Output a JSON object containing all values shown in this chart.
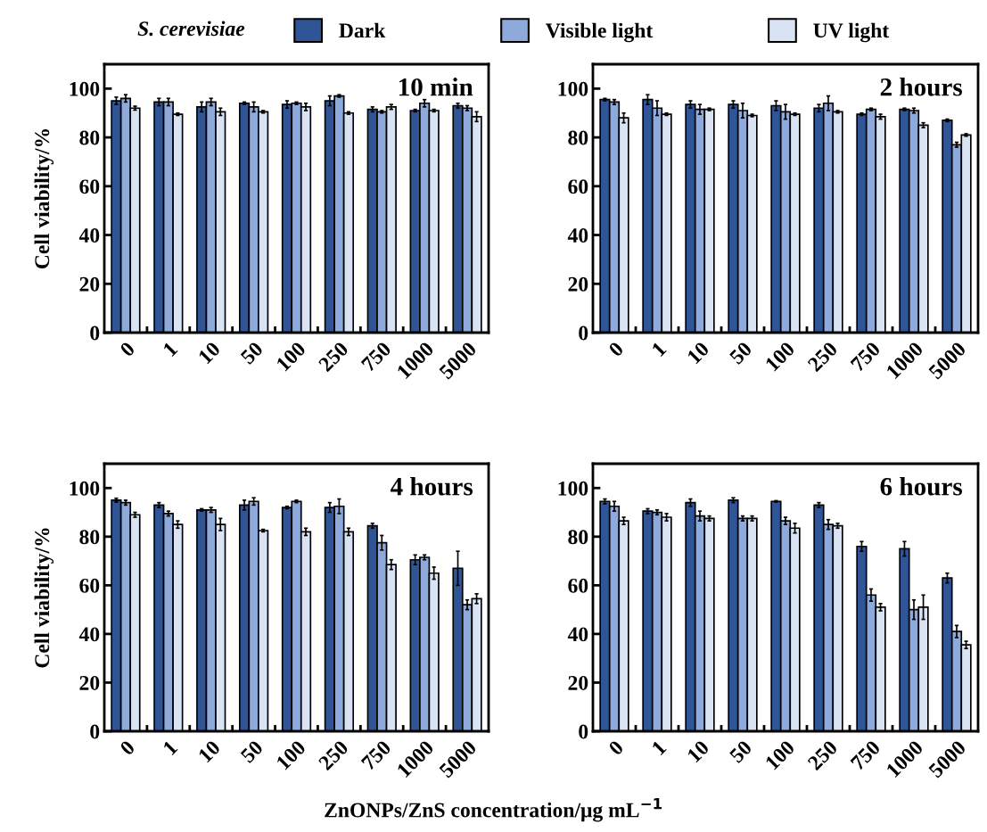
{
  "chart_data": [
    {
      "type": "bar",
      "title": "10 min",
      "ylabel": "Cell viability/%",
      "legend_title": "S. cerevisiae",
      "legend": "top",
      "categories": [
        "0",
        "1",
        "10",
        "50",
        "100",
        "250",
        "750",
        "1000",
        "5000"
      ],
      "ylim": [
        0,
        110
      ],
      "yticks": [
        0,
        20,
        40,
        60,
        80,
        100
      ],
      "series": [
        {
          "name": "Dark",
          "color": "#2f5597",
          "values": [
            95,
            94.5,
            92.5,
            94,
            93.5,
            95,
            91.5,
            91,
            93
          ],
          "errors": [
            1.5,
            1.5,
            2,
            0.5,
            1.5,
            2,
            1,
            0.5,
            1
          ]
        },
        {
          "name": "Visible light",
          "color": "#8eaadb",
          "values": [
            96,
            94.5,
            94.5,
            92.5,
            94,
            97,
            90.5,
            94,
            92
          ],
          "errors": [
            1.5,
            1.5,
            1.5,
            2,
            0.5,
            0.5,
            0.5,
            1.5,
            1
          ]
        },
        {
          "name": "UV light",
          "color": "#dae3f3",
          "values": [
            92,
            89.5,
            90.5,
            90.5,
            92.5,
            90,
            92.5,
            91,
            88.5
          ],
          "errors": [
            0.8,
            0.5,
            1.5,
            0.5,
            1.5,
            0.5,
            1,
            0.5,
            2
          ]
        }
      ]
    },
    {
      "type": "bar",
      "title": "2 hours",
      "categories": [
        "0",
        "1",
        "10",
        "50",
        "100",
        "250",
        "750",
        "1000",
        "5000"
      ],
      "ylim": [
        0,
        110
      ],
      "yticks": [
        0,
        20,
        40,
        60,
        80,
        100
      ],
      "series": [
        {
          "color": "#2f5597",
          "values": [
            95.5,
            95.5,
            93.5,
            93.5,
            93,
            92,
            89.5,
            91.5,
            87
          ],
          "errors": [
            0.5,
            2,
            1.5,
            1.5,
            2,
            1.5,
            0.5,
            0.5,
            0.5
          ]
        },
        {
          "color": "#8eaadb",
          "values": [
            94.5,
            92,
            91.5,
            91,
            90.5,
            94,
            91.5,
            91,
            77
          ],
          "errors": [
            1,
            3,
            2,
            3,
            3,
            3,
            0.5,
            1,
            1
          ]
        },
        {
          "color": "#dae3f3",
          "values": [
            88,
            89.5,
            91.5,
            89,
            89.5,
            90.5,
            88.5,
            85,
            81
          ],
          "errors": [
            2,
            0.5,
            0.5,
            0.5,
            0.5,
            0.5,
            1,
            1,
            0.5
          ]
        }
      ]
    },
    {
      "type": "bar",
      "title": "4 hours",
      "ylabel": "Cell viability/%",
      "xlabel": "ZnONPs/ZnS concentration/μg mL$^{−1}$",
      "categories": [
        "0",
        "1",
        "10",
        "50",
        "100",
        "250",
        "750",
        "1000",
        "5000"
      ],
      "ylim": [
        0,
        110
      ],
      "yticks": [
        0,
        20,
        40,
        60,
        80,
        100
      ],
      "series": [
        {
          "color": "#2f5597",
          "values": [
            95,
            93,
            91,
            93,
            92,
            92,
            84.5,
            70.5,
            67
          ],
          "errors": [
            0.8,
            1,
            0.5,
            2,
            0.5,
            2,
            1,
            2,
            7
          ]
        },
        {
          "color": "#8eaadb",
          "values": [
            94,
            89.5,
            91,
            94.5,
            94.5,
            92.5,
            77.5,
            71.5,
            52
          ],
          "errors": [
            1,
            1,
            1,
            1.5,
            0.5,
            3,
            3,
            1,
            2
          ]
        },
        {
          "color": "#dae3f3",
          "values": [
            89,
            85,
            85,
            82.5,
            82,
            82,
            68.5,
            65,
            54.5
          ],
          "errors": [
            1,
            1.5,
            2.5,
            0.5,
            1.5,
            1.5,
            2,
            2.5,
            2
          ]
        }
      ]
    },
    {
      "type": "bar",
      "title": "6 hours",
      "categories": [
        "0",
        "1",
        "10",
        "50",
        "100",
        "250",
        "750",
        "1000",
        "5000"
      ],
      "ylim": [
        0,
        110
      ],
      "yticks": [
        0,
        20,
        40,
        60,
        80,
        100
      ],
      "series": [
        {
          "color": "#2f5597",
          "values": [
            94.5,
            90.5,
            94,
            95,
            94.5,
            93,
            76,
            75,
            63
          ],
          "errors": [
            1,
            1,
            1.5,
            1,
            0.3,
            1,
            2,
            3,
            2
          ]
        },
        {
          "color": "#8eaadb",
          "values": [
            92.5,
            90,
            88.5,
            87.5,
            86.5,
            85,
            56,
            50,
            41
          ],
          "errors": [
            2,
            1,
            2,
            1,
            1.5,
            2,
            2.5,
            4,
            2.5
          ]
        },
        {
          "color": "#dae3f3",
          "values": [
            86.5,
            88,
            87.5,
            87.5,
            83.5,
            84.5,
            51,
            51,
            35.5
          ],
          "errors": [
            1.5,
            1.5,
            1,
            1,
            2,
            1,
            1.5,
            5,
            1.5
          ]
        }
      ]
    }
  ]
}
